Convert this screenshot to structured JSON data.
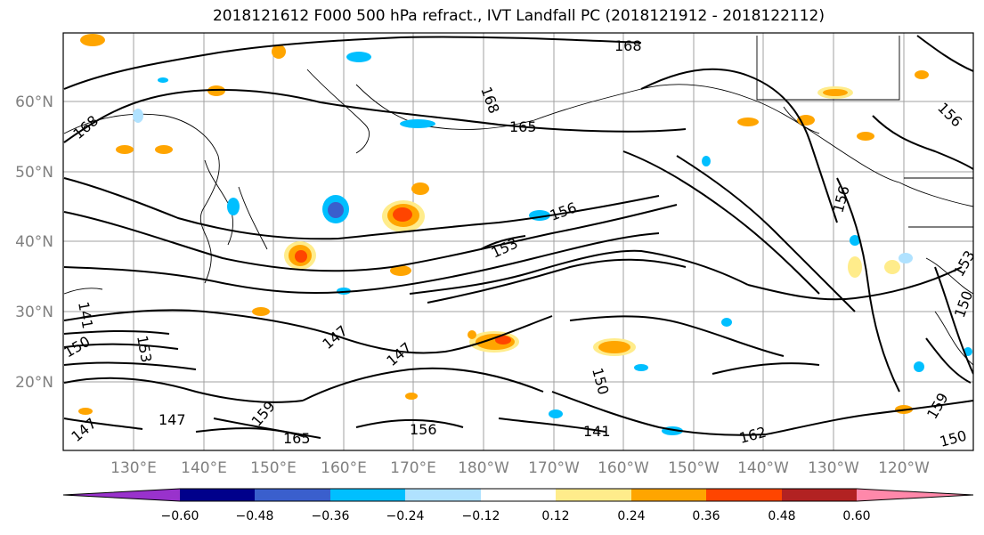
{
  "title": "2018121612 F000 500 hPa refract., IVT Landfall PC (2018121912 - 2018122112)",
  "lat_labels": [
    "60°N",
    "50°N",
    "40°N",
    "30°N",
    "20°N"
  ],
  "lon_labels": [
    "130°E",
    "140°E",
    "150°E",
    "160°E",
    "170°E",
    "180°W",
    "170°W",
    "160°W",
    "150°W",
    "140°W",
    "130°W",
    "120°W"
  ],
  "contour_labels": [
    "168",
    "168",
    "168",
    "165",
    "156",
    "153",
    "156",
    "153",
    "150",
    "147",
    "147",
    "150",
    "147",
    "141",
    "162",
    "159",
    "156",
    "153",
    "150",
    "159",
    "150",
    "165",
    "156",
    "147",
    "141"
  ],
  "colorbar": {
    "ticks": [
      "−0.60",
      "−0.48",
      "−0.36",
      "−0.24",
      "−0.12",
      "0.12",
      "0.24",
      "0.36",
      "0.48",
      "0.60"
    ],
    "colors": [
      "#9932cc",
      "#00008b",
      "#3a5fcd",
      "#00bfff",
      "#b0e2ff",
      "#ffffff",
      "#ffec8b",
      "#ffa500",
      "#ff4500",
      "#b22222",
      "#ff88aa"
    ]
  }
}
